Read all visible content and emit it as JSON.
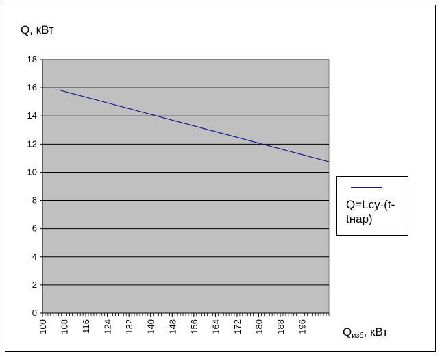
{
  "chart_data": {
    "type": "line",
    "title": "",
    "ylabel": "Q, кВт",
    "xlabel_main": "Q",
    "xlabel_sub": "изб",
    "xlabel_tail": ", кВт",
    "ylim": [
      0,
      18
    ],
    "yticks": [
      0,
      2,
      4,
      6,
      8,
      10,
      12,
      14,
      16,
      18
    ],
    "xlim": [
      100,
      206
    ],
    "xticks": [
      100,
      108,
      116,
      124,
      132,
      140,
      148,
      156,
      164,
      172,
      180,
      188,
      196
    ],
    "grid": "horizontal",
    "plot_background": "#c0c0c0",
    "line_color": "#1a1a8c",
    "legend_position": "right",
    "series": [
      {
        "name": "Q=Lcy·(t-tнар)",
        "x": [
          106,
          206
        ],
        "y": [
          15.85,
          10.75
        ]
      }
    ]
  }
}
